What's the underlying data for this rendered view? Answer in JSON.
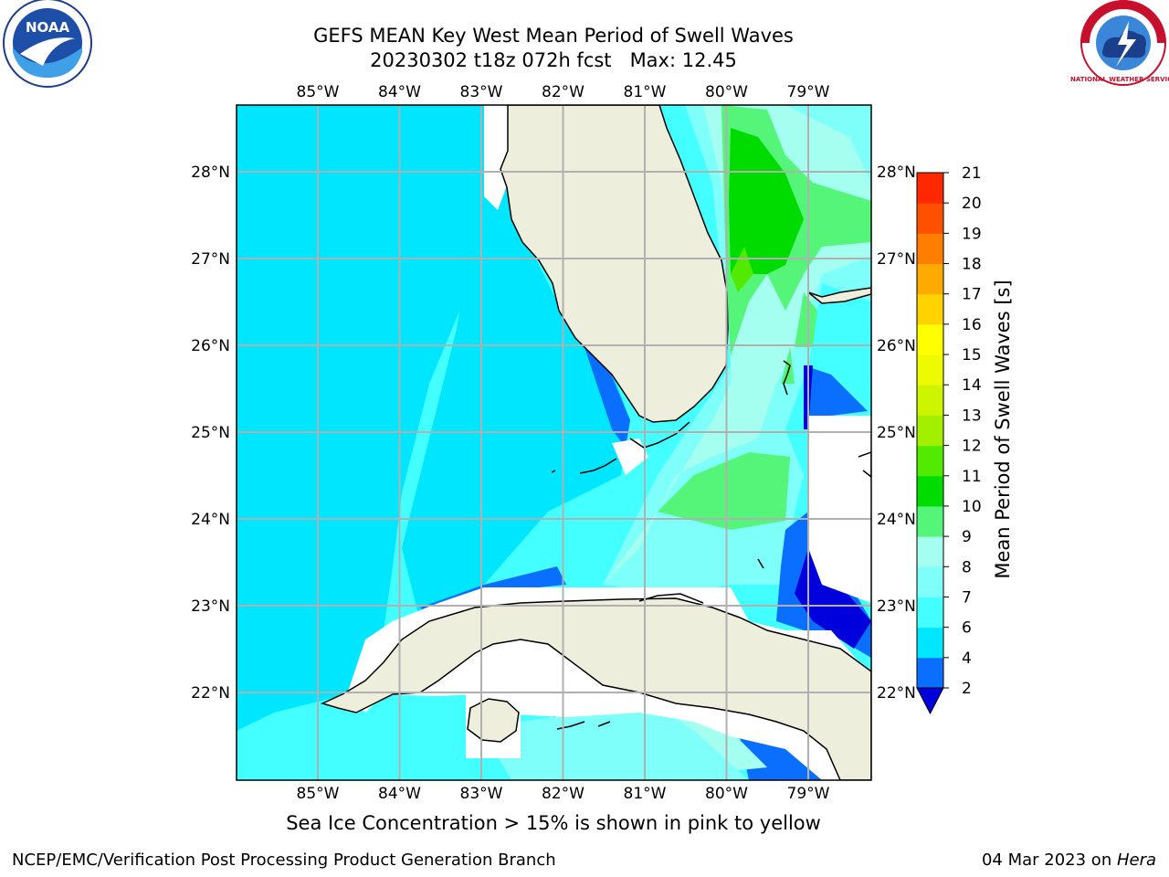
{
  "title": {
    "line1": "GEFS MEAN Key West Mean Period of Swell Waves",
    "line2": "20230302 t18z 072h fcst   Max: 12.45"
  },
  "logos": {
    "left": {
      "name": "NOAA",
      "text": "NOAA"
    },
    "right": {
      "name": "NATIONAL WEATHER SERVICE",
      "text": "NATIONAL WEATHER SERVICE"
    }
  },
  "map": {
    "lon_labels": [
      "85°W",
      "84°W",
      "83°W",
      "82°W",
      "81°W",
      "80°W",
      "79°W"
    ],
    "lat_labels": [
      "28°N",
      "27°N",
      "26°N",
      "25°N",
      "24°N",
      "23°N",
      "22°N"
    ],
    "extent": {
      "lon": [
        -86.0,
        -78.3
      ],
      "lat": [
        21.0,
        28.8
      ]
    },
    "colors": {
      "ocean_base": "#44ffff",
      "land": "#eeeedd",
      "grid": "#b0b0b0"
    }
  },
  "colorbar": {
    "label": "Mean Period of Swell Waves [s]",
    "ticks": [
      "2",
      "4",
      "6",
      "7",
      "8",
      "9",
      "10",
      "11",
      "12",
      "13",
      "14",
      "15",
      "16",
      "17",
      "18",
      "19",
      "20",
      "21"
    ],
    "colors": [
      "#0a6eff",
      "#00e6ff",
      "#44ffff",
      "#7ffffa",
      "#a5fff0",
      "#55f57a",
      "#00dc00",
      "#52ea00",
      "#a2f000",
      "#cdf500",
      "#eefa00",
      "#ffff00",
      "#ffd200",
      "#ffaa00",
      "#ff7d00",
      "#ff5000",
      "#ff2800",
      "#ff0000"
    ],
    "under_color": "#0000dd"
  },
  "caption": "Sea Ice Concentration > 15% is shown in pink to yellow",
  "footer": {
    "left": "NCEP/EMC/Verification Post Processing Product Generation Branch",
    "right_date": "04 Mar 2023 on ",
    "right_host": "Hera"
  }
}
